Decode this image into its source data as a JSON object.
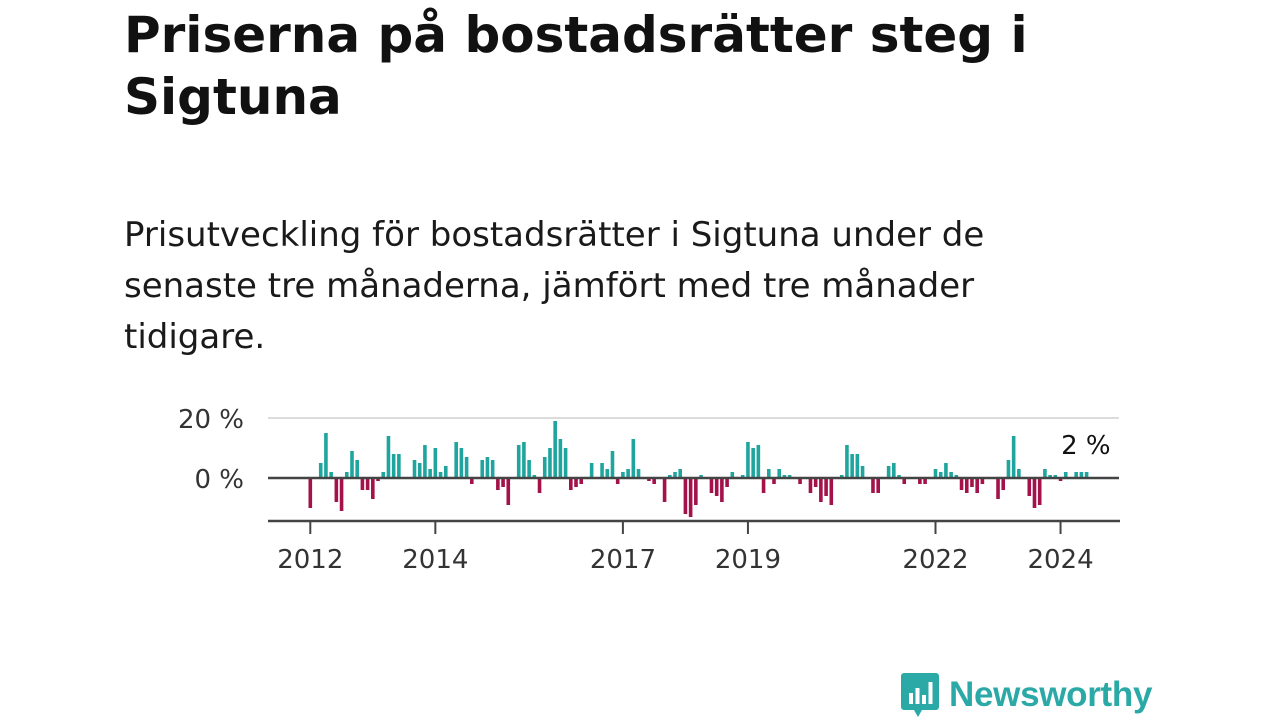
{
  "header": {
    "title": "Priserna på bostadsrätter steg i Sigtuna",
    "subtitle": "Prisutveckling för bostadsrätter i Sigtuna under de senaste tre månaderna, jämfört med tre månader tidigare."
  },
  "brand": {
    "name": "Newsworthy",
    "icon": "newsworthy-logo-icon"
  },
  "colors": {
    "positive": "#1fa59e",
    "negative": "#a3124a",
    "gridline": "#dcdcdc",
    "baseline": "#444444",
    "brand": "#2aa9a7"
  },
  "chart_data": {
    "type": "bar",
    "title": "",
    "xlabel": "",
    "ylabel": "",
    "x_start": "2012-01",
    "ylim": [
      -14,
      20
    ],
    "y_ticks": [
      {
        "value": 20,
        "label": "20 %"
      },
      {
        "value": 0,
        "label": "0 %"
      }
    ],
    "x_ticks": [
      {
        "label": "2012",
        "index": 0
      },
      {
        "label": "2014",
        "index": 24
      },
      {
        "label": "2017",
        "index": 60
      },
      {
        "label": "2019",
        "index": 84
      },
      {
        "label": "2022",
        "index": 120
      },
      {
        "label": "2024",
        "index": 144
      }
    ],
    "last_value_label": "2 %",
    "values": [
      -10,
      0,
      5,
      15,
      2,
      -8,
      -11,
      2,
      9,
      6,
      -4,
      -4,
      -7,
      -1,
      2,
      14,
      8,
      8,
      0,
      0,
      6,
      5,
      11,
      3,
      10,
      2,
      4,
      0,
      12,
      10,
      7,
      -2,
      0,
      6,
      7,
      6,
      -4,
      -3,
      -9,
      0,
      11,
      12,
      6,
      1,
      -5,
      7,
      10,
      19,
      13,
      10,
      -4,
      -3,
      -2,
      0,
      5,
      0,
      5,
      3,
      9,
      -2,
      2,
      3,
      13,
      3,
      0,
      -1,
      -2,
      0,
      -8,
      1,
      2,
      3,
      -12,
      -13,
      -9,
      1,
      0,
      -5,
      -6,
      -8,
      -3,
      2,
      0,
      1,
      12,
      10,
      11,
      -5,
      3,
      -2,
      3,
      1,
      1,
      0,
      -2,
      0,
      -5,
      -3,
      -8,
      -6,
      -9,
      0,
      1,
      11,
      8,
      8,
      4,
      0,
      -5,
      -5,
      0,
      4,
      5,
      1,
      -2,
      0,
      0,
      -2,
      -2,
      0,
      3,
      2,
      5,
      2,
      1,
      -4,
      -5,
      -3,
      -5,
      -2,
      0,
      0,
      -7,
      -4,
      6,
      14,
      3,
      0,
      -6,
      -10,
      -9,
      3,
      1,
      1,
      -1,
      2,
      0,
      2,
      2,
      2
    ]
  }
}
